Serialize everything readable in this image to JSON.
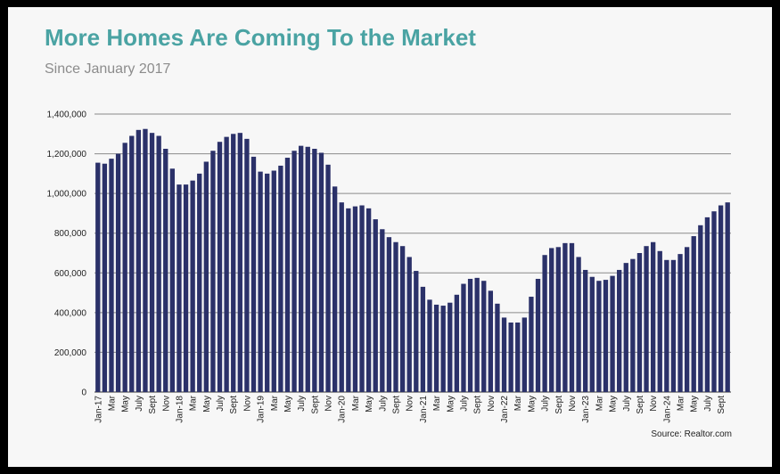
{
  "title": "More Homes Are Coming To the Market",
  "subtitle": "Since January 2017",
  "source": "Source: Realtor.com",
  "colors": {
    "title": "#4aa3a3",
    "bar": "#2b3169",
    "background": "#f7f7f7",
    "frame": "#000000"
  },
  "chart_data": {
    "type": "bar",
    "ylim": [
      0,
      1400000
    ],
    "y_ticks": [
      0,
      200000,
      400000,
      600000,
      800000,
      1000000,
      1200000,
      1400000
    ],
    "y_tick_labels": [
      "0",
      "200,000",
      "400,000",
      "600,000",
      "800,000",
      "1,000,000",
      "1,200,000",
      "1,400,000"
    ],
    "grid": true,
    "x_tick_labels": [
      "Jan-17",
      "Mar",
      "May",
      "July",
      "Sept",
      "Nov",
      "Jan-18",
      "Mar",
      "May",
      "July",
      "Sept",
      "Nov",
      "Jan-19",
      "Mar",
      "May",
      "July",
      "Sept",
      "Nov",
      "Jan-20",
      "Mar",
      "May",
      "July",
      "Sept",
      "Nov",
      "Jan-21",
      "Mar",
      "May",
      "July",
      "Sept",
      "Nov",
      "Jan-22",
      "Mar",
      "May",
      "July",
      "Sept",
      "Nov",
      "Jan-23",
      "Mar",
      "May",
      "July",
      "Sept",
      "Nov",
      "Jan-24",
      "Mar",
      "May",
      "July",
      "Sept"
    ],
    "values": [
      1155000,
      1150000,
      1175000,
      1200000,
      1255000,
      1290000,
      1320000,
      1325000,
      1305000,
      1290000,
      1225000,
      1125000,
      1045000,
      1045000,
      1065000,
      1100000,
      1160000,
      1215000,
      1260000,
      1285000,
      1300000,
      1305000,
      1275000,
      1185000,
      1110000,
      1100000,
      1115000,
      1140000,
      1180000,
      1215000,
      1240000,
      1235000,
      1225000,
      1205000,
      1145000,
      1035000,
      955000,
      925000,
      935000,
      940000,
      925000,
      870000,
      820000,
      780000,
      755000,
      735000,
      680000,
      610000,
      530000,
      465000,
      440000,
      435000,
      450000,
      490000,
      545000,
      570000,
      575000,
      560000,
      510000,
      445000,
      375000,
      350000,
      350000,
      375000,
      480000,
      570000,
      690000,
      725000,
      730000,
      750000,
      750000,
      680000,
      615000,
      580000,
      560000,
      565000,
      585000,
      615000,
      650000,
      670000,
      700000,
      735000,
      755000,
      710000,
      665000,
      665000,
      695000,
      730000,
      785000,
      840000,
      880000,
      910000,
      940000,
      955000
    ]
  }
}
